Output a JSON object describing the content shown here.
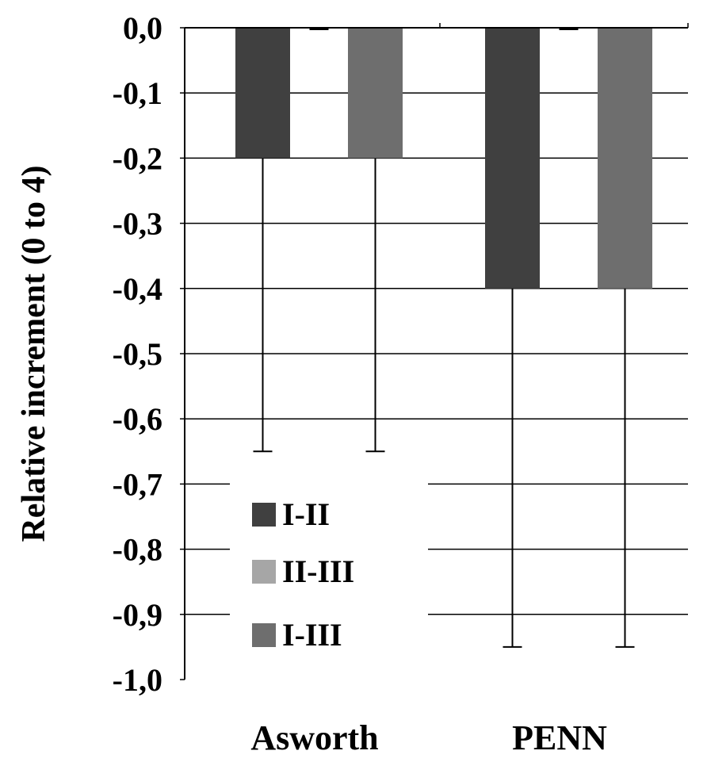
{
  "chart_data": {
    "type": "bar",
    "title": "",
    "xlabel": "",
    "ylabel": "Relative increment (0 to 4)",
    "ylim": [
      -1.0,
      0.0
    ],
    "yticks": [
      0.0,
      -0.1,
      -0.2,
      -0.3,
      -0.4,
      -0.5,
      -0.6,
      -0.7,
      -0.8,
      -0.9,
      -1.0
    ],
    "ytick_labels": [
      "0,0",
      "-0,1",
      "-0,2",
      "-0,3",
      "-0,4",
      "-0,5",
      "-0,6",
      "-0,7",
      "-0,8",
      "-0,9",
      "-1,0"
    ],
    "categories": [
      "Asworth",
      "PENN"
    ],
    "series": [
      {
        "name": "I-II",
        "values": [
          -0.2,
          -0.4
        ],
        "error_low": [
          -0.65,
          -0.95
        ],
        "color": "#404040"
      },
      {
        "name": "II-III",
        "values": [
          0.0,
          0.0
        ],
        "error_low": [
          0.0,
          0.0
        ],
        "color": "#a6a6a6"
      },
      {
        "name": "I-III",
        "values": [
          -0.2,
          -0.4
        ],
        "error_low": [
          -0.65,
          -0.95
        ],
        "color": "#6e6e6e"
      }
    ],
    "grid": true,
    "legend_position": "bottom-left"
  }
}
